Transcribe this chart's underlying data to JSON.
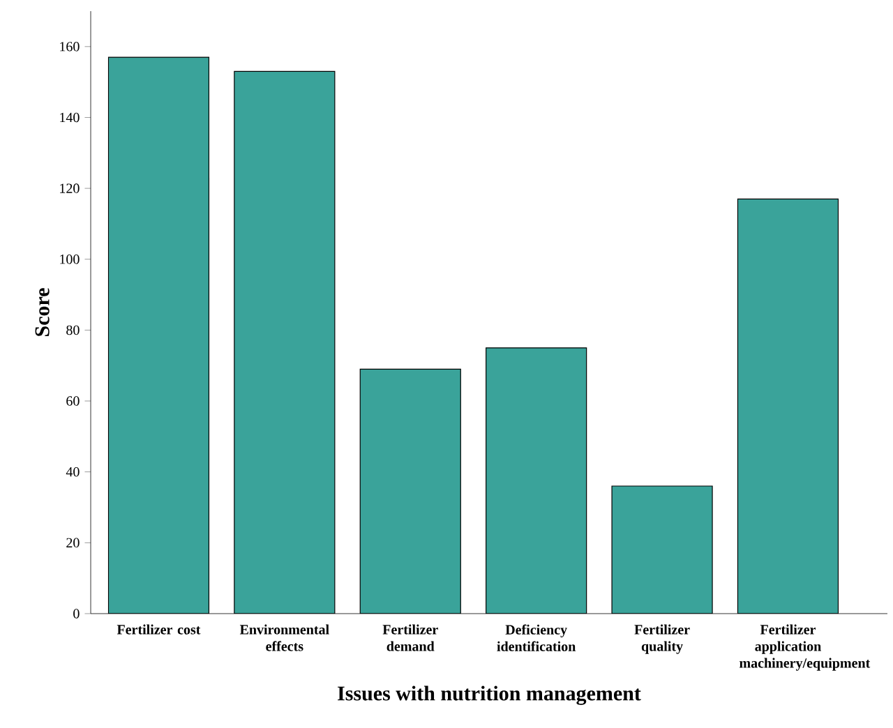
{
  "chart_data": {
    "type": "bar",
    "xlabel": "Issues with nutrition management",
    "ylabel": "Score",
    "categories": [
      "Fertilizer cost",
      "Environmental effects",
      "Fertilizer demand",
      "Deficiency identification",
      "Fertilizer quality",
      "Fertilizer application machinery/equipment"
    ],
    "values": [
      157,
      153,
      69,
      75,
      36,
      117
    ],
    "color": "#3aa39a",
    "ylim": [
      0,
      170
    ],
    "yticks": [
      0,
      20,
      40,
      60,
      80,
      100,
      120,
      140,
      160
    ]
  }
}
